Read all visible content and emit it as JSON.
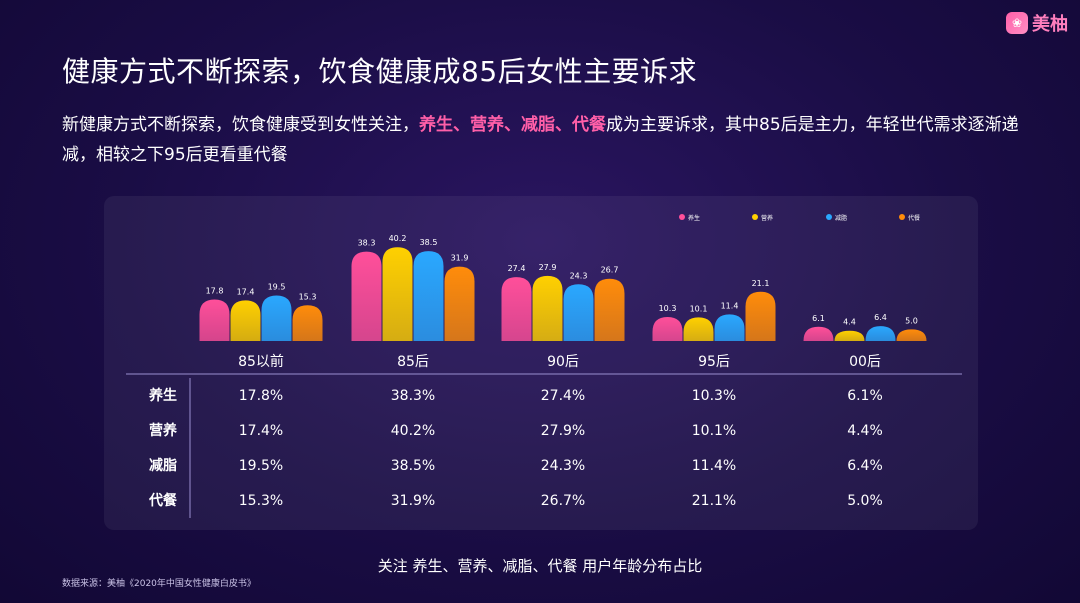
{
  "logo": {
    "mark": "❀",
    "text": "美柚"
  },
  "title": "健康方式不断探索，饮食健康成85后女性主要诉求",
  "subtitle": {
    "part1": "新健康方式不断探索，饮食健康受到女性关注，",
    "highlight": "养生、营养、减脂、代餐",
    "part2": "成为主要诉求，其中85后是主力，年轻世代需求逐渐递减，相较之下95后更看重代餐"
  },
  "chart_data": {
    "type": "bar",
    "categories": [
      "85以前",
      "85后",
      "90后",
      "95后",
      "00后"
    ],
    "series": [
      {
        "name": "养生",
        "values": [
          17.8,
          38.3,
          27.4,
          10.3,
          6.1
        ],
        "color": "#ff4f9a"
      },
      {
        "name": "营养",
        "values": [
          17.4,
          40.2,
          27.9,
          10.1,
          4.4
        ],
        "color": "#ffd000"
      },
      {
        "name": "减脂",
        "values": [
          19.5,
          38.5,
          24.3,
          11.4,
          6.4
        ],
        "color": "#2aa8ff"
      },
      {
        "name": "代餐",
        "values": [
          15.3,
          31.9,
          26.7,
          21.1,
          5.0
        ],
        "color": "#ff8c0a"
      }
    ],
    "ylim": [
      0,
      45
    ],
    "legend": "top-right",
    "table": [
      [
        "17.8%",
        "38.3%",
        "27.4%",
        "10.3%",
        "6.1%"
      ],
      [
        "17.4%",
        "40.2%",
        "27.9%",
        "10.1%",
        "4.4%"
      ],
      [
        "19.5%",
        "38.5%",
        "24.3%",
        "11.4%",
        "6.4%"
      ],
      [
        "15.3%",
        "31.9%",
        "26.7%",
        "21.1%",
        "5.0%"
      ]
    ]
  },
  "caption": "关注 养生、营养、减脂、代餐 用户年龄分布占比",
  "source": "数据来源：美柚《2020年中国女性健康白皮书》"
}
